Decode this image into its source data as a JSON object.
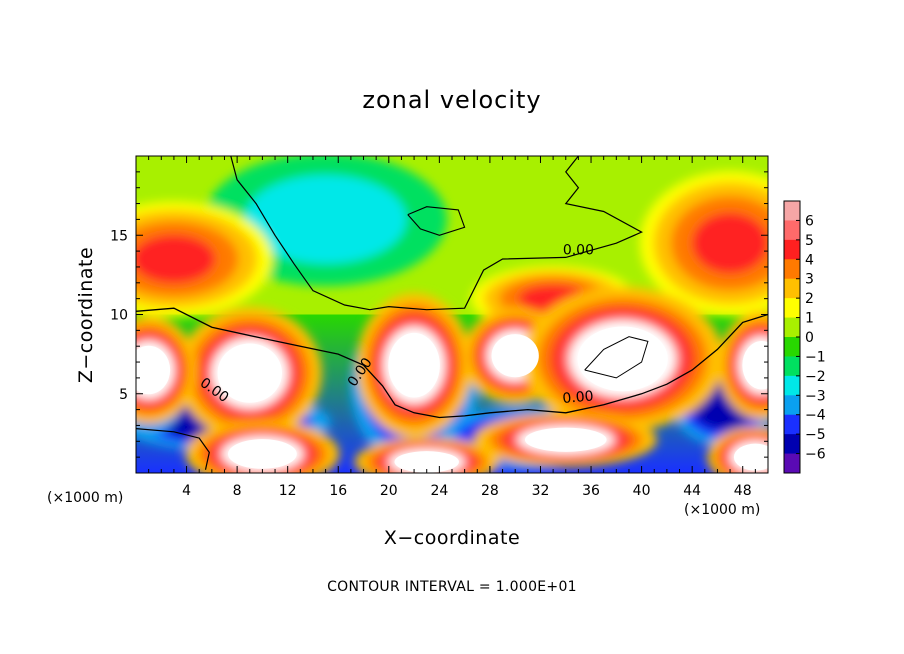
{
  "chart_data": {
    "type": "heatmap",
    "title": "zonal velocity",
    "xlabel": "X−coordinate",
    "ylabel": "Z−coordinate",
    "x_units": "(×1000 m)",
    "footer": "CONTOUR INTERVAL = 1.000E+01",
    "xlim": [
      0,
      50
    ],
    "ylim": [
      0,
      20
    ],
    "x_ticks": [
      4,
      8,
      12,
      16,
      20,
      24,
      28,
      32,
      36,
      40,
      44,
      48
    ],
    "y_ticks": [
      5,
      10,
      15
    ],
    "colorbar": {
      "ticks": [
        "6",
        "5",
        "4",
        "3",
        "2",
        "1",
        "0",
        "−1",
        "−2",
        "−3",
        "−4",
        "−5",
        "−6"
      ],
      "colors": [
        "#f6a6a6",
        "#ff6a6a",
        "#ff2020",
        "#ff7a00",
        "#ffc000",
        "#ffff00",
        "#a8f000",
        "#28d800",
        "#00e060",
        "#00e8e8",
        "#0aa0f0",
        "#1a30ff",
        "#0000b0",
        "#5a0ab4"
      ]
    },
    "contours": [
      {
        "level": "0.00",
        "x": 18.0,
        "y": 6.2,
        "angle": -55
      },
      {
        "level": "0.00",
        "x": 6.0,
        "y": 5.0,
        "angle": 35
      },
      {
        "level": "0.00",
        "x": 35.0,
        "y": 4.5,
        "angle": -5
      },
      {
        "level": "0.00",
        "x": 35.0,
        "y": 13.8,
        "angle": 0
      }
    ],
    "features": [
      {
        "kind": "max",
        "x": 9.0,
        "y": 6.3,
        "rx": 3.0,
        "ry": 2.2
      },
      {
        "kind": "max",
        "x": 22.0,
        "y": 6.8,
        "rx": 2.4,
        "ry": 2.4
      },
      {
        "kind": "max",
        "x": 30.0,
        "y": 7.4,
        "rx": 2.2,
        "ry": 1.6
      },
      {
        "kind": "max",
        "x": 38.5,
        "y": 7.2,
        "rx": 4.2,
        "ry": 2.4
      },
      {
        "kind": "max",
        "x": 34.0,
        "y": 2.1,
        "rx": 3.8,
        "ry": 0.9
      },
      {
        "kind": "max",
        "x": 10.0,
        "y": 1.2,
        "rx": 3.2,
        "ry": 1.1
      },
      {
        "kind": "max",
        "x": 23.0,
        "y": 0.7,
        "rx": 3.0,
        "ry": 0.8
      },
      {
        "kind": "max",
        "x": 1.0,
        "y": 6.5,
        "rx": 2.0,
        "ry": 1.8
      },
      {
        "kind": "max",
        "x": 49.5,
        "y": 6.8,
        "rx": 1.8,
        "ry": 1.8
      },
      {
        "kind": "max",
        "x": 49.0,
        "y": 1.0,
        "rx": 2.0,
        "ry": 1.0
      },
      {
        "kind": "upper_max",
        "x": 3.0,
        "y": 13.5,
        "rx": 6.0,
        "ry": 2.8
      },
      {
        "kind": "upper_max",
        "x": 47.0,
        "y": 14.5,
        "rx": 5.5,
        "ry": 3.5
      },
      {
        "kind": "upper_max",
        "x": 33.0,
        "y": 11.0,
        "rx": 5.0,
        "ry": 1.6
      },
      {
        "kind": "min",
        "x": 22.0,
        "y": 5.5,
        "rx": 3.6,
        "ry": 3.6
      },
      {
        "kind": "min",
        "x": 7.0,
        "y": 3.2,
        "rx": 6.0,
        "ry": 1.3
      },
      {
        "kind": "min",
        "x": 31.0,
        "y": 2.2,
        "rx": 5.0,
        "ry": 1.4
      },
      {
        "kind": "min",
        "x": 46.5,
        "y": 4.5,
        "rx": 3.0,
        "ry": 2.0
      },
      {
        "kind": "min",
        "x": 1.0,
        "y": 6.0,
        "rx": 2.2,
        "ry": 2.6
      },
      {
        "kind": "calm",
        "x": 15.0,
        "y": 16.0,
        "rx": 8.0,
        "ry": 3.5
      }
    ]
  }
}
